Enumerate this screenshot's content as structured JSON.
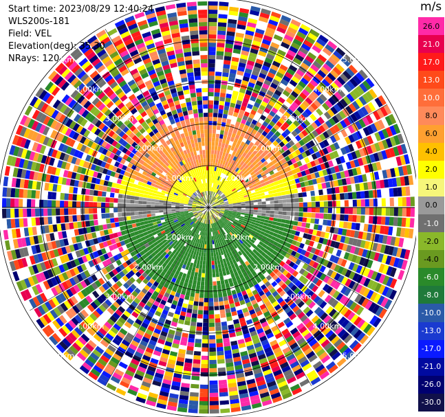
{
  "header": {
    "start_time": "Start time: 2023/08/29 12:40:24",
    "instrument": "WLS200s-181",
    "field": "Field: VEL",
    "elevation": "Elevation(deg): 35.30",
    "nrays": "NRays: 120"
  },
  "colorbar": {
    "unit": "m/s",
    "ticks": [
      "26.0",
      "21.0",
      "17.0",
      "13.0",
      "10.0",
      "8.0",
      "6.0",
      "4.0",
      "2.0",
      "1.0",
      "0.0",
      "-1.0",
      "-2.0",
      "-4.0",
      "-6.0",
      "-8.0",
      "-10.0",
      "-13.0",
      "-17.0",
      "-21.0",
      "-26.0",
      "-30.0"
    ],
    "colors": [
      "#ff2aa8",
      "#e8004f",
      "#ff1a1a",
      "#ff4a1a",
      "#ff6e3a",
      "#ff8a5a",
      "#ffa030",
      "#ffc000",
      "#ffff00",
      "#f6f67a",
      "#9a9a9a",
      "#707070",
      "#8ab82a",
      "#6a9a20",
      "#2a8a2a",
      "#1f7a3a",
      "#2a5aa8",
      "#1a3ad0",
      "#0a1aff",
      "#000aa0",
      "#000070",
      "#10104a"
    ]
  },
  "chart_data": {
    "type": "ppi",
    "title": "",
    "field": "VEL",
    "units": "m/s",
    "n_rays": 120,
    "elevation_deg": 35.3,
    "range_rings_km": [
      1.0,
      2.0,
      3.0,
      4.0,
      5.0
    ],
    "ring_labels": [
      "1.00km",
      "2.00km",
      "3.00km",
      "4.00km",
      "5.00km"
    ],
    "vmin": -30.0,
    "vmax": 26.0,
    "description_regions": [
      {
        "sector": "north (azimuth 315-45)",
        "range_km": [
          0.3,
          2.0
        ],
        "velocity_ms": 8.0
      },
      {
        "sector": "west-east band (ring 1-1.7km)",
        "range_km": [
          0.3,
          1.8
        ],
        "velocity_ms": 2.0
      },
      {
        "sector": "west / east",
        "range_km": [
          0.3,
          1.5
        ],
        "velocity_ms": 0.0
      },
      {
        "sector": "south (azimuth 120-240)",
        "range_km": [
          0.3,
          2.0
        ],
        "velocity_ms": -5.0
      },
      {
        "sector": "outer (all azimuths)",
        "range_km": [
          2.0,
          5.5
        ],
        "velocity_ms": "noise"
      }
    ]
  }
}
